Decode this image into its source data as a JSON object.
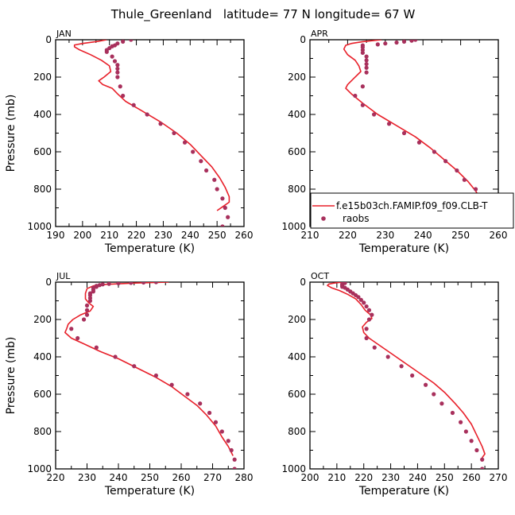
{
  "figure": {
    "title": "Thule_Greenland   latitude= 77 N longitude= 67 W"
  },
  "colors": {
    "model_line": "#e8202a",
    "raobs_marker": "#a8305c",
    "axes": "#000000"
  },
  "legend": {
    "panel": "APR",
    "placement": "lower-right",
    "model_label": "f.e15b03ch.FAMIP.f09_f09.CLB-T",
    "raobs_label": "raobs"
  },
  "chart_data": [
    {
      "type": "line",
      "panel": "JAN",
      "xlabel": "Temperature (K)",
      "ylabel": "Pressure (mb)",
      "xlim": [
        190,
        260
      ],
      "ylim": [
        1000,
        0
      ],
      "xticks": [
        190,
        200,
        210,
        220,
        230,
        240,
        250,
        260
      ],
      "yticks": [
        0,
        200,
        400,
        600,
        800,
        1000
      ],
      "series": [
        {
          "name": "f.e15b03ch.FAMIP.f09_f09.CLB-T",
          "style": "line",
          "points": [
            [
              209,
              0
            ],
            [
              206,
              8
            ],
            [
              203,
              14
            ],
            [
              200,
              20
            ],
            [
              197,
              28
            ],
            [
              197,
              38
            ],
            [
              199,
              55
            ],
            [
              203,
              80
            ],
            [
              207,
              110
            ],
            [
              210,
              140
            ],
            [
              210.5,
              170
            ],
            [
              208,
              200
            ],
            [
              206,
              220
            ],
            [
              207.5,
              240
            ],
            [
              211,
              260
            ],
            [
              213,
              290
            ],
            [
              216,
              330
            ],
            [
              222,
              380
            ],
            [
              229,
              440
            ],
            [
              235,
              500
            ],
            [
              240,
              560
            ],
            [
              244,
              620
            ],
            [
              248,
              680
            ],
            [
              251,
              740
            ],
            [
              253,
              790
            ],
            [
              254.5,
              840
            ],
            [
              254.5,
              870
            ],
            [
              252,
              895
            ],
            [
              250,
              915
            ]
          ]
        },
        {
          "name": "raobs",
          "style": "markers",
          "points": [
            [
              218,
              0
            ],
            [
              215,
              10
            ],
            [
              213,
              20
            ],
            [
              212,
              30
            ],
            [
              211,
              35
            ],
            [
              210,
              45
            ],
            [
              209,
              55
            ],
            [
              209,
              65
            ],
            [
              211,
              90
            ],
            [
              212,
              115
            ],
            [
              213,
              135
            ],
            [
              213,
              155
            ],
            [
              213,
              175
            ],
            [
              213,
              200
            ],
            [
              214,
              250
            ],
            [
              215,
              300
            ],
            [
              219,
              350
            ],
            [
              224,
              400
            ],
            [
              229,
              450
            ],
            [
              234,
              500
            ],
            [
              238,
              550
            ],
            [
              241,
              600
            ],
            [
              244,
              650
            ],
            [
              246,
              700
            ],
            [
              249,
              750
            ],
            [
              250,
              800
            ],
            [
              252,
              850
            ],
            [
              253,
              900
            ],
            [
              254,
              950
            ],
            [
              252,
              1000
            ]
          ]
        }
      ]
    },
    {
      "type": "line",
      "panel": "APR",
      "xlabel": "Temperature (K)",
      "ylabel": "",
      "xlim": [
        210,
        260
      ],
      "ylim": [
        1000,
        0
      ],
      "xticks": [
        210,
        220,
        230,
        240,
        250,
        260
      ],
      "yticks": [
        0,
        200,
        400,
        600,
        800,
        1000
      ],
      "series": [
        {
          "name": "f.e15b03ch.FAMIP.f09_f09.CLB-T",
          "style": "line",
          "points": [
            [
              229,
              0
            ],
            [
              224,
              10
            ],
            [
              221,
              20
            ],
            [
              219.5,
              30
            ],
            [
              219,
              50
            ],
            [
              220,
              80
            ],
            [
              222,
              110
            ],
            [
              223,
              140
            ],
            [
              223.5,
              170
            ],
            [
              221.5,
              210
            ],
            [
              220,
              240
            ],
            [
              219.5,
              260
            ],
            [
              221,
              290
            ],
            [
              224,
              340
            ],
            [
              228,
              400
            ],
            [
              233,
              460
            ],
            [
              238,
              520
            ],
            [
              242,
              580
            ],
            [
              245.5,
              640
            ],
            [
              249,
              700
            ],
            [
              252,
              760
            ],
            [
              254,
              810
            ],
            [
              255.5,
              860
            ],
            [
              257,
              900
            ],
            [
              256.5,
              920
            ],
            [
              255,
              940
            ]
          ]
        },
        {
          "name": "raobs",
          "style": "markers",
          "points": [
            [
              238,
              0
            ],
            [
              237,
              5
            ],
            [
              235,
              10
            ],
            [
              233,
              15
            ],
            [
              230,
              20
            ],
            [
              228,
              25
            ],
            [
              224,
              30
            ],
            [
              224,
              40
            ],
            [
              224,
              55
            ],
            [
              224,
              70
            ],
            [
              225,
              90
            ],
            [
              225,
              110
            ],
            [
              225,
              130
            ],
            [
              225,
              150
            ],
            [
              225,
              175
            ],
            [
              224,
              250
            ],
            [
              222,
              300
            ],
            [
              224,
              350
            ],
            [
              227,
              400
            ],
            [
              231,
              450
            ],
            [
              235,
              500
            ],
            [
              239,
              550
            ],
            [
              243,
              600
            ],
            [
              246,
              650
            ],
            [
              249,
              700
            ],
            [
              251,
              750
            ],
            [
              254,
              800
            ],
            [
              255,
              850
            ],
            [
              256,
              900
            ],
            [
              257,
              950
            ],
            [
              257,
              1000
            ]
          ]
        }
      ]
    },
    {
      "type": "line",
      "panel": "JUL",
      "xlabel": "Temperature (K)",
      "ylabel": "Pressure (mb)",
      "xlim": [
        220,
        280
      ],
      "ylim": [
        1000,
        0
      ],
      "xticks": [
        220,
        230,
        240,
        250,
        260,
        270,
        280
      ],
      "yticks": [
        0,
        200,
        400,
        600,
        800,
        1000
      ],
      "series": [
        {
          "name": "f.e15b03ch.FAMIP.f09_f09.CLB-T",
          "style": "line",
          "points": [
            [
              256,
              0
            ],
            [
              245,
              5
            ],
            [
              236,
              12
            ],
            [
              232,
              20
            ],
            [
              230,
              35
            ],
            [
              229.5,
              60
            ],
            [
              229.5,
              90
            ],
            [
              230.5,
              110
            ],
            [
              232,
              130
            ],
            [
              231,
              155
            ],
            [
              228,
              175
            ],
            [
              225.5,
              200
            ],
            [
              224,
              225
            ],
            [
              223.5,
              250
            ],
            [
              223,
              270
            ],
            [
              225,
              300
            ],
            [
              229,
              330
            ],
            [
              234,
              370
            ],
            [
              240,
              410
            ],
            [
              246,
              460
            ],
            [
              252,
              510
            ],
            [
              257,
              560
            ],
            [
              261,
              610
            ],
            [
              265,
              660
            ],
            [
              268,
              710
            ],
            [
              271,
              770
            ],
            [
              273,
              830
            ],
            [
              275,
              880
            ],
            [
              276.5,
              930
            ]
          ]
        },
        {
          "name": "raobs",
          "style": "markers",
          "points": [
            [
              252,
              0
            ],
            [
              248,
              2
            ],
            [
              244,
              4
            ],
            [
              240,
              6
            ],
            [
              237,
              9
            ],
            [
              235,
              12
            ],
            [
              234,
              16
            ],
            [
              233,
              20
            ],
            [
              233,
              25
            ],
            [
              232,
              30
            ],
            [
              232,
              40
            ],
            [
              232,
              50
            ],
            [
              231,
              60
            ],
            [
              231,
              70
            ],
            [
              231,
              85
            ],
            [
              231,
              100
            ],
            [
              230,
              125
            ],
            [
              230,
              150
            ],
            [
              230,
              175
            ],
            [
              229,
              200
            ],
            [
              225,
              250
            ],
            [
              227,
              300
            ],
            [
              233,
              350
            ],
            [
              239,
              400
            ],
            [
              245,
              450
            ],
            [
              252,
              500
            ],
            [
              257,
              550
            ],
            [
              262,
              600
            ],
            [
              266,
              650
            ],
            [
              269,
              700
            ],
            [
              271,
              750
            ],
            [
              273,
              800
            ],
            [
              275,
              850
            ],
            [
              276,
              900
            ],
            [
              277,
              950
            ],
            [
              277,
              1000
            ]
          ]
        }
      ]
    },
    {
      "type": "line",
      "panel": "OCT",
      "xlabel": "Temperature (K)",
      "ylabel": "",
      "xlim": [
        200,
        270
      ],
      "ylim": [
        1000,
        0
      ],
      "xticks": [
        200,
        210,
        220,
        230,
        240,
        250,
        260,
        270
      ],
      "yticks": [
        0,
        200,
        400,
        600,
        800,
        1000
      ],
      "series": [
        {
          "name": "f.e15b03ch.FAMIP.f09_f09.CLB-T",
          "style": "line",
          "points": [
            [
              212,
              0
            ],
            [
              209,
              5
            ],
            [
              207,
              10
            ],
            [
              206.5,
              18
            ],
            [
              208,
              30
            ],
            [
              211,
              45
            ],
            [
              214,
              65
            ],
            [
              217,
              90
            ],
            [
              219,
              120
            ],
            [
              220.5,
              150
            ],
            [
              222.5,
              175
            ],
            [
              223,
              195
            ],
            [
              221,
              215
            ],
            [
              219.5,
              240
            ],
            [
              220,
              270
            ],
            [
              222,
              300
            ],
            [
              226,
              340
            ],
            [
              231,
              390
            ],
            [
              236,
              440
            ],
            [
              241,
              490
            ],
            [
              246,
              540
            ],
            [
              250,
              590
            ],
            [
              254,
              650
            ],
            [
              257,
              700
            ],
            [
              260,
              760
            ],
            [
              262,
              820
            ],
            [
              264,
              880
            ],
            [
              265,
              920
            ],
            [
              264,
              940
            ]
          ]
        },
        {
          "name": "raobs",
          "style": "markers",
          "points": [
            [
              213,
              0
            ],
            [
              213,
              5
            ],
            [
              212,
              10
            ],
            [
              212,
              15
            ],
            [
              212,
              20
            ],
            [
              212,
              25
            ],
            [
              213,
              30
            ],
            [
              214,
              40
            ],
            [
              215,
              50
            ],
            [
              216,
              60
            ],
            [
              217,
              70
            ],
            [
              218,
              80
            ],
            [
              219,
              95
            ],
            [
              220,
              110
            ],
            [
              221,
              130
            ],
            [
              222,
              150
            ],
            [
              223,
              175
            ],
            [
              222,
              200
            ],
            [
              221,
              250
            ],
            [
              221,
              300
            ],
            [
              224,
              350
            ],
            [
              229,
              400
            ],
            [
              234,
              450
            ],
            [
              238,
              500
            ],
            [
              243,
              550
            ],
            [
              246,
              600
            ],
            [
              249,
              650
            ],
            [
              253,
              700
            ],
            [
              256,
              750
            ],
            [
              258,
              800
            ],
            [
              260,
              850
            ],
            [
              262,
              900
            ],
            [
              264,
              950
            ],
            [
              264,
              1000
            ]
          ]
        }
      ]
    }
  ]
}
